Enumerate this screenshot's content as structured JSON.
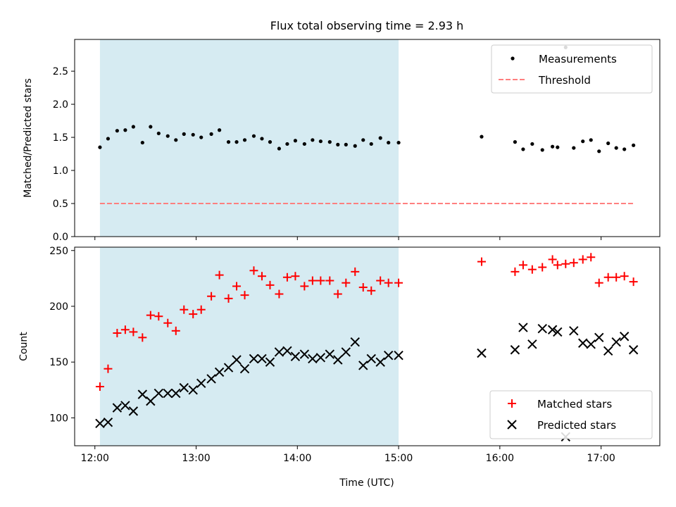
{
  "figure": {
    "title": "Flux total observing time = 2.93 h",
    "shaded_window": {
      "x_start_hours": 12.05,
      "x_end_hours": 15.0,
      "color": "#add8e6"
    },
    "colors": {
      "measurements": "#000000",
      "threshold": "#ff7f7f",
      "matched": "#ff0000",
      "predicted": "#000000",
      "shade": "#add8e6"
    },
    "xlabel": "Time (UTC)",
    "xticks": [
      {
        "value": 12,
        "label": "12:00"
      },
      {
        "value": 13,
        "label": "13:00"
      },
      {
        "value": 14,
        "label": "14:00"
      },
      {
        "value": 15,
        "label": "15:00"
      },
      {
        "value": 16,
        "label": "16:00"
      },
      {
        "value": 17,
        "label": "17:00"
      }
    ]
  },
  "chart_data": [
    {
      "type": "scatter",
      "title": "Flux total observing time = 2.93 h",
      "xlabel": "",
      "ylabel": "Matched/Predicted stars",
      "xlim": [
        11.8,
        17.58
      ],
      "ylim": [
        0.0,
        2.98
      ],
      "yticks": [
        {
          "value": 0.0,
          "label": "0.0"
        },
        {
          "value": 0.5,
          "label": "0.5"
        },
        {
          "value": 1.0,
          "label": "1.0"
        },
        {
          "value": 1.5,
          "label": "1.5"
        },
        {
          "value": 2.0,
          "label": "2.0"
        },
        {
          "value": 2.5,
          "label": "2.5"
        }
      ],
      "legend_position": "upper right",
      "grid": false,
      "series": [
        {
          "name": "Measurements",
          "marker": "dot",
          "x": [
            12.05,
            12.13,
            12.22,
            12.3,
            12.38,
            12.47,
            12.55,
            12.63,
            12.72,
            12.8,
            12.88,
            12.97,
            13.05,
            13.15,
            13.23,
            13.32,
            13.4,
            13.48,
            13.57,
            13.65,
            13.73,
            13.82,
            13.9,
            13.98,
            14.07,
            14.15,
            14.23,
            14.32,
            14.4,
            14.48,
            14.57,
            14.65,
            14.73,
            14.82,
            14.9,
            15.0,
            15.82,
            16.15,
            16.23,
            16.32,
            16.42,
            16.52,
            16.57,
            16.65,
            16.73,
            16.82,
            16.9,
            16.98,
            17.07,
            17.15,
            17.23,
            17.32
          ],
          "y": [
            1.35,
            1.48,
            1.6,
            1.61,
            1.66,
            1.42,
            1.66,
            1.56,
            1.52,
            1.46,
            1.55,
            1.54,
            1.5,
            1.55,
            1.61,
            1.43,
            1.43,
            1.46,
            1.52,
            1.48,
            1.43,
            1.33,
            1.4,
            1.45,
            1.4,
            1.46,
            1.44,
            1.43,
            1.39,
            1.39,
            1.37,
            1.46,
            1.4,
            1.49,
            1.42,
            1.42,
            1.51,
            1.43,
            1.32,
            1.4,
            1.31,
            1.36,
            1.35,
            2.86,
            1.34,
            1.44,
            1.46,
            1.29,
            1.41,
            1.34,
            1.32,
            1.38
          ]
        },
        {
          "name": "Threshold",
          "style": "dashed",
          "x": [
            12.05,
            17.32
          ],
          "y": [
            0.5,
            0.5
          ]
        }
      ]
    },
    {
      "type": "scatter",
      "title": "",
      "xlabel": "Time (UTC)",
      "ylabel": "Count",
      "xlim": [
        11.8,
        17.58
      ],
      "ylim": [
        75,
        253
      ],
      "yticks": [
        {
          "value": 100,
          "label": "100"
        },
        {
          "value": 150,
          "label": "150"
        },
        {
          "value": 200,
          "label": "200"
        },
        {
          "value": 250,
          "label": "250"
        }
      ],
      "legend_position": "lower right",
      "grid": false,
      "series": [
        {
          "name": "Matched stars",
          "marker": "plus",
          "x": [
            12.05,
            12.13,
            12.22,
            12.3,
            12.38,
            12.47,
            12.55,
            12.63,
            12.72,
            12.8,
            12.88,
            12.97,
            13.05,
            13.15,
            13.23,
            13.32,
            13.4,
            13.48,
            13.57,
            13.65,
            13.73,
            13.82,
            13.9,
            13.98,
            14.07,
            14.15,
            14.23,
            14.32,
            14.4,
            14.48,
            14.57,
            14.65,
            14.73,
            14.82,
            14.9,
            15.0,
            15.82,
            16.15,
            16.23,
            16.32,
            16.42,
            16.52,
            16.57,
            16.65,
            16.73,
            16.82,
            16.9,
            16.98,
            17.07,
            17.15,
            17.23,
            17.32
          ],
          "y": [
            128,
            144,
            176,
            179,
            177,
            172,
            192,
            191,
            185,
            178,
            197,
            193,
            197,
            209,
            228,
            207,
            218,
            210,
            232,
            227,
            219,
            211,
            226,
            227,
            218,
            223,
            223,
            223,
            211,
            221,
            231,
            217,
            214,
            223,
            221,
            221,
            240,
            231,
            237,
            233,
            235,
            242,
            237,
            238,
            239,
            242,
            244,
            221,
            226,
            226,
            227,
            222
          ]
        },
        {
          "name": "Predicted stars",
          "marker": "x",
          "x": [
            12.05,
            12.13,
            12.22,
            12.3,
            12.38,
            12.47,
            12.55,
            12.63,
            12.72,
            12.8,
            12.88,
            12.97,
            13.05,
            13.15,
            13.23,
            13.32,
            13.4,
            13.48,
            13.57,
            13.65,
            13.73,
            13.82,
            13.9,
            13.98,
            14.07,
            14.15,
            14.23,
            14.32,
            14.4,
            14.48,
            14.57,
            14.65,
            14.73,
            14.82,
            14.9,
            15.0,
            15.82,
            16.15,
            16.23,
            16.32,
            16.42,
            16.52,
            16.57,
            16.65,
            16.73,
            16.82,
            16.9,
            16.98,
            17.07,
            17.15,
            17.23,
            17.32
          ],
          "y": [
            95,
            96,
            109,
            111,
            106,
            121,
            115,
            122,
            122,
            122,
            127,
            125,
            131,
            135,
            141,
            145,
            152,
            144,
            153,
            153,
            150,
            159,
            160,
            155,
            157,
            153,
            154,
            157,
            152,
            159,
            168,
            147,
            153,
            150,
            156,
            156,
            158,
            161,
            181,
            166,
            180,
            179,
            177,
            83,
            178,
            167,
            166,
            172,
            160,
            168,
            173,
            161
          ]
        }
      ]
    }
  ]
}
